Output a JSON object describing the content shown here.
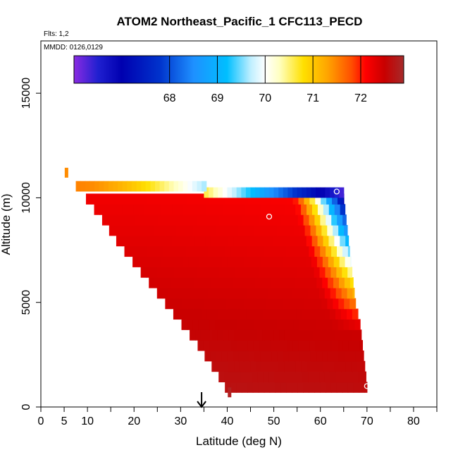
{
  "chart_data": {
    "type": "heatmap",
    "title": "ATOM2 Northeast_Pacific_1 CFC113_PECD",
    "flights_note": "Flts: 1,2",
    "date_note": "MMDD: 0126,0129",
    "xlabel": "Latitude (deg N)",
    "ylabel": "Altitude (m)",
    "xlim": [
      0,
      85
    ],
    "ylim": [
      0,
      17500
    ],
    "x_ticks": [
      0,
      5,
      10,
      20,
      30,
      40,
      50,
      60,
      70,
      80
    ],
    "x_tick_labels": [
      "0",
      "5",
      "10",
      "20",
      "30",
      "40",
      "50",
      "60",
      "70",
      "80"
    ],
    "x_minor_ticks": [
      15,
      25,
      35,
      45,
      55,
      65,
      75,
      85
    ],
    "y_ticks": [
      0,
      5000,
      10000,
      15000
    ],
    "y_tick_labels": [
      "0",
      "5000",
      "10000",
      "15000"
    ],
    "colorbar": {
      "vmin": 66.0,
      "vmax": 72.9,
      "ticks": [
        68,
        69,
        70,
        71,
        72
      ],
      "tick_labels": [
        "68",
        "69",
        "70",
        "71",
        "72"
      ],
      "stops": [
        {
          "v": 66.0,
          "c": "#8a2be2"
        },
        {
          "v": 66.5,
          "c": "#2020d0"
        },
        {
          "v": 67.0,
          "c": "#0000b0"
        },
        {
          "v": 67.8,
          "c": "#0033cc"
        },
        {
          "v": 68.5,
          "c": "#1e90ff"
        },
        {
          "v": 69.2,
          "c": "#00bfff"
        },
        {
          "v": 69.7,
          "c": "#bfefff"
        },
        {
          "v": 70.0,
          "c": "#ffffff"
        },
        {
          "v": 70.3,
          "c": "#ffffc0"
        },
        {
          "v": 70.8,
          "c": "#ffe000"
        },
        {
          "v": 71.3,
          "c": "#ffa500"
        },
        {
          "v": 71.8,
          "c": "#ff5000"
        },
        {
          "v": 72.1,
          "c": "#ff0000"
        },
        {
          "v": 72.5,
          "c": "#c80000"
        },
        {
          "v": 72.9,
          "c": "#a52a2a"
        }
      ]
    },
    "curtain": {
      "description": "Interpolated curtain between flight track lower and upper bounds",
      "rows": [
        {
          "alt": 1000,
          "lat_start": 39.5,
          "lat_end": 70.0
        },
        {
          "alt": 2000,
          "lat_start": 36.5,
          "lat_end": 69.5
        },
        {
          "alt": 3000,
          "lat_start": 33.5,
          "lat_end": 69.0
        },
        {
          "alt": 4000,
          "lat_start": 30.0,
          "lat_end": 68.5
        },
        {
          "alt": 5000,
          "lat_start": 26.5,
          "lat_end": 67.5
        },
        {
          "alt": 6000,
          "lat_start": 23.0,
          "lat_end": 67.0
        },
        {
          "alt": 7000,
          "lat_start": 19.5,
          "lat_end": 66.5
        },
        {
          "alt": 8000,
          "lat_start": 16.0,
          "lat_end": 66.0
        },
        {
          "alt": 9000,
          "lat_start": 13.0,
          "lat_end": 65.5
        },
        {
          "alt": 10000,
          "lat_start": 9.5,
          "lat_end": 65.0
        }
      ],
      "top_band": {
        "alt_low": 10300,
        "alt_high": 10800,
        "lat_start": 7.5,
        "lat_end": 35.0
      },
      "upper_band": {
        "alt_low": 10000,
        "alt_high": 10500,
        "lat_start": 35.0,
        "lat_end": 65.0
      }
    },
    "markers": [
      {
        "lat": 5.5,
        "alt": 11200,
        "color": "#ff8c00",
        "kind": "square"
      },
      {
        "lat": 40.5,
        "alt": 700,
        "color": "#b22222",
        "kind": "square"
      },
      {
        "lat": 49.0,
        "alt": 9100,
        "color": "#ffffff",
        "kind": "circle"
      },
      {
        "lat": 63.5,
        "alt": 10300,
        "color": "#ffffff",
        "kind": "circle"
      },
      {
        "lat": 70.0,
        "alt": 1000,
        "color": "#ffffff",
        "kind": "circle"
      }
    ],
    "arrow": {
      "lat": 34.5,
      "alt_top": 700,
      "alt_bottom": 0
    }
  }
}
